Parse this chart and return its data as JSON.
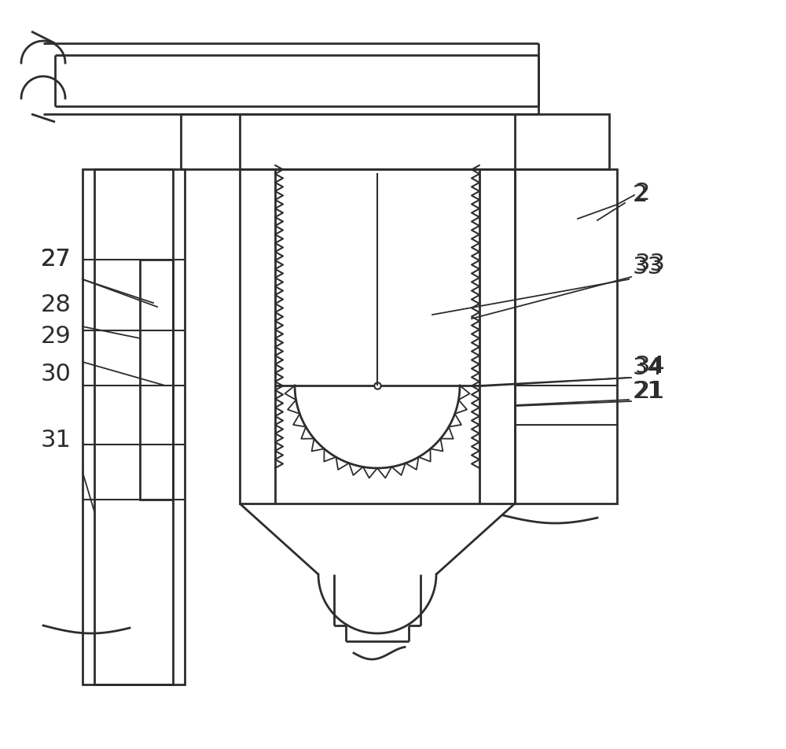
{
  "bg_color": "#ffffff",
  "line_color": "#2d2d2d",
  "lw": 2.0,
  "tlw": 1.5,
  "figsize": [
    10.0,
    9.52
  ],
  "dpi": 100
}
